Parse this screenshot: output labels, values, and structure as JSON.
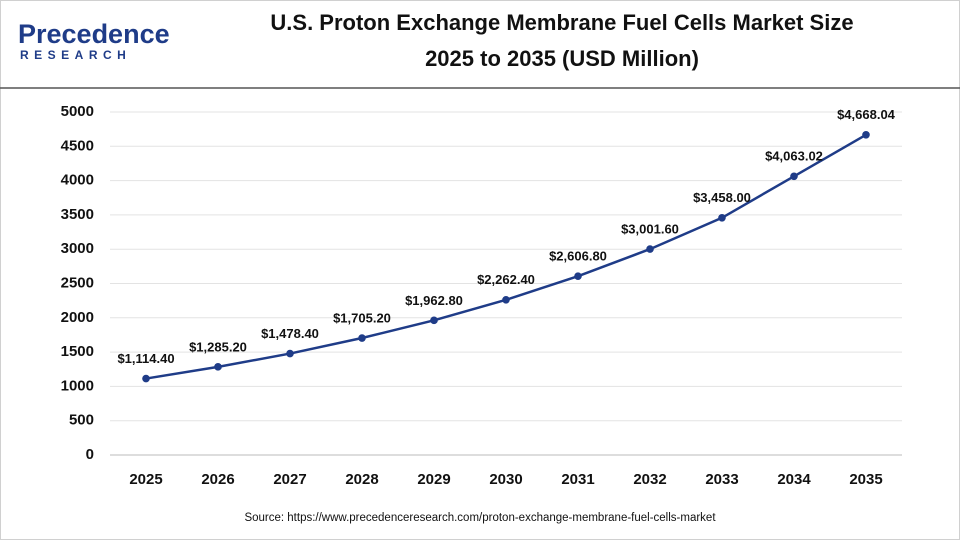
{
  "logo": {
    "name": "Precedence",
    "sub": "RESEARCH"
  },
  "chart_data": {
    "type": "line",
    "title": [
      "U.S. Proton Exchange Membrane Fuel Cells Market Size",
      "2025 to 2035 (USD Million)"
    ],
    "source": "Source: https://www.precedenceresearch.com/proton-exchange-membrane-fuel-cells-market",
    "categories": [
      "2025",
      "2026",
      "2027",
      "2028",
      "2029",
      "2030",
      "2031",
      "2032",
      "2033",
      "2034",
      "2035"
    ],
    "values": [
      1114.4,
      1285.2,
      1478.4,
      1705.2,
      1962.8,
      2262.4,
      2606.8,
      3001.6,
      3458.0,
      4063.02,
      4668.04
    ],
    "value_labels": [
      "$1,114.40",
      "$1,285.20",
      "$1,478.40",
      "$1,705.20",
      "$1,962.80",
      "$2,262.40",
      "$2,606.80",
      "$3,001.60",
      "$3,458.00",
      "$4,063.02",
      "$4,668.04"
    ],
    "color": "#1f3c88",
    "ylim": [
      0,
      5000
    ],
    "yticks": [
      0,
      500,
      1000,
      1500,
      2000,
      2500,
      3000,
      3500,
      4000,
      4500,
      5000
    ],
    "grid": true
  }
}
